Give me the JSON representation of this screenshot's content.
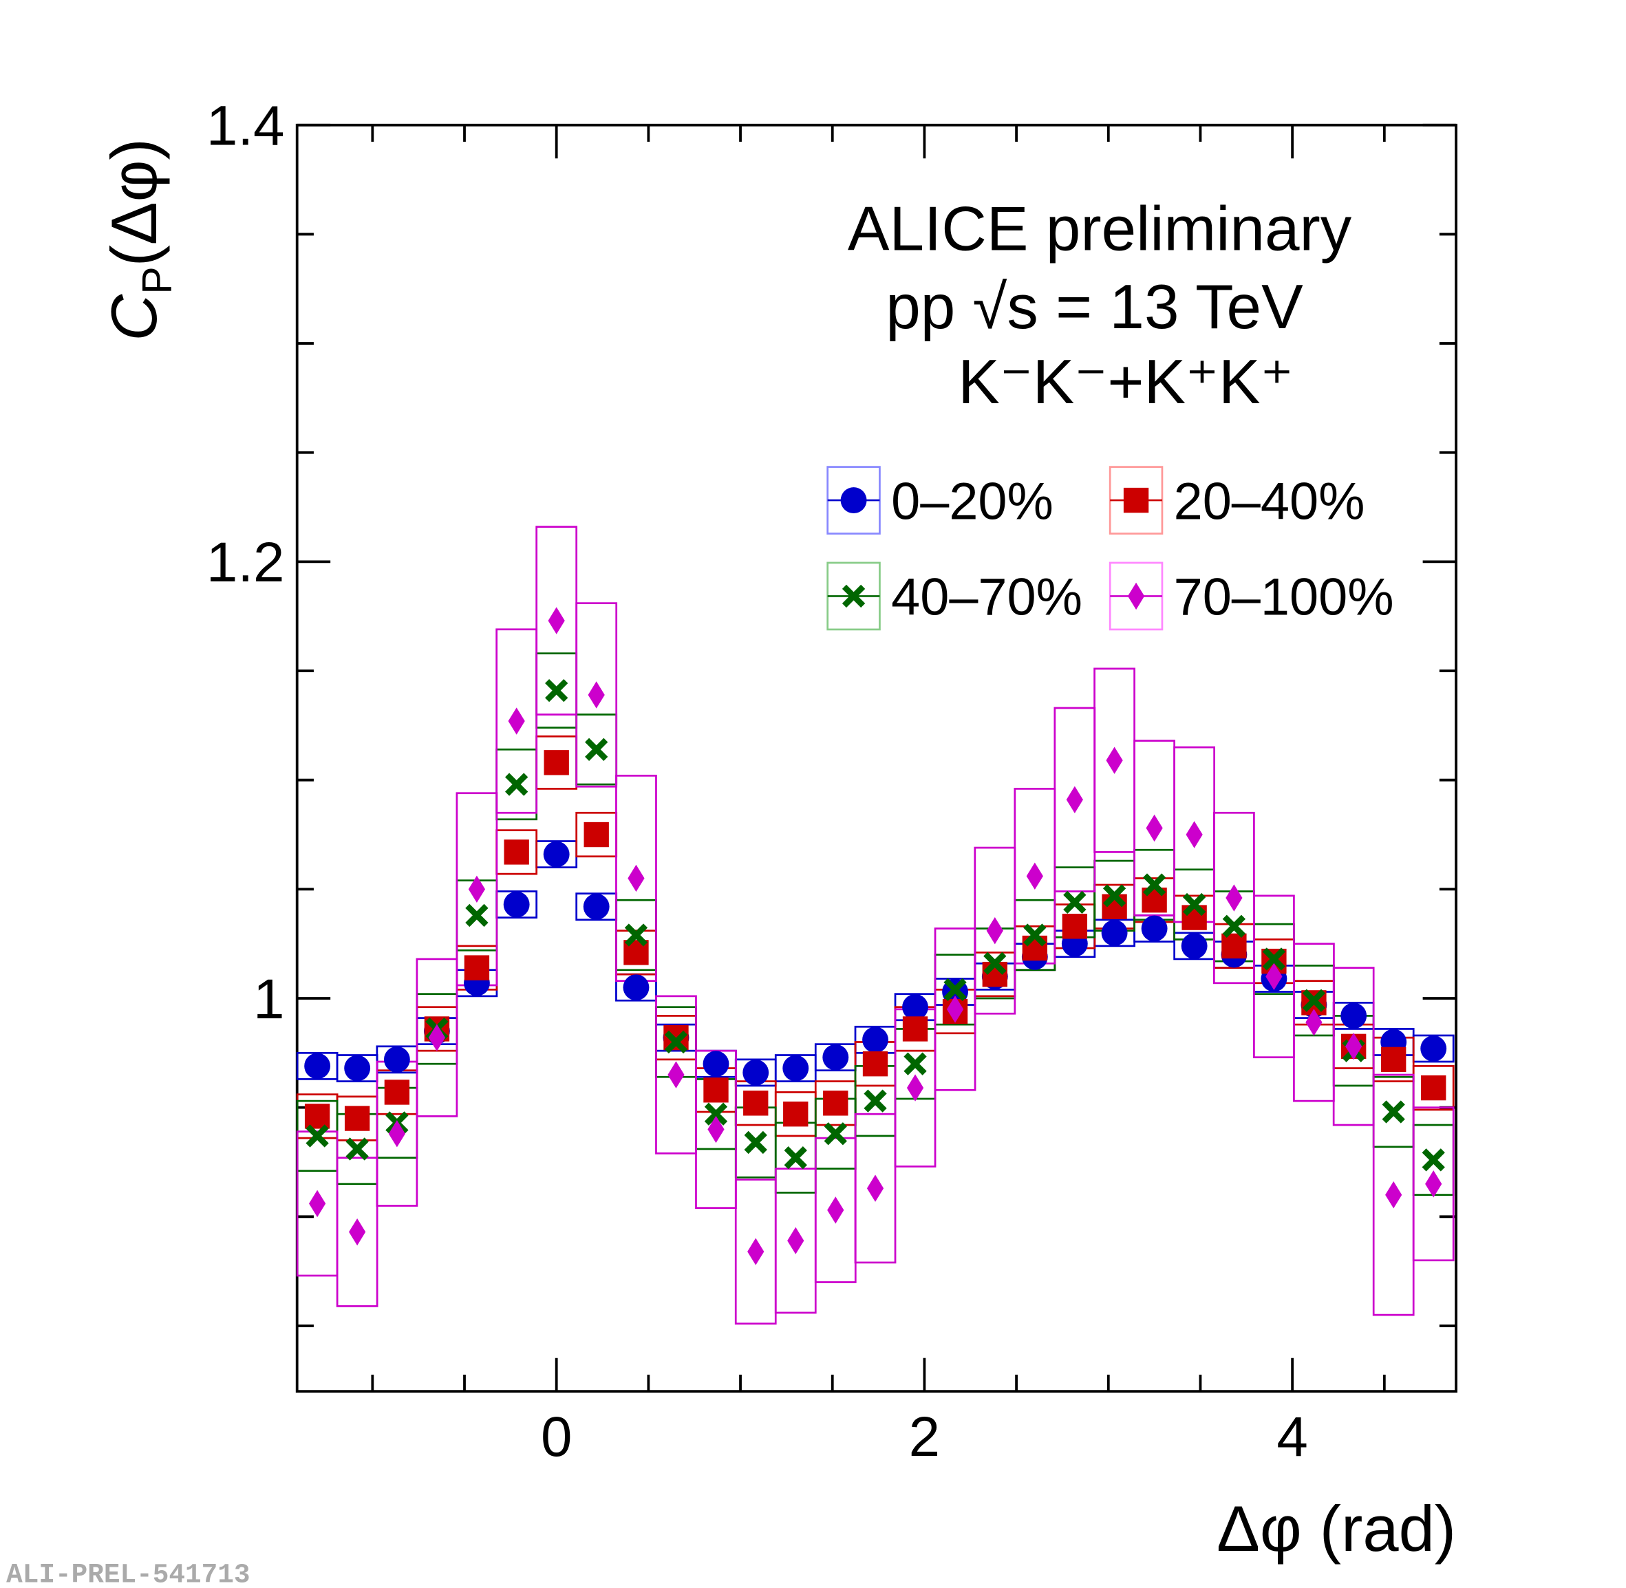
{
  "chart_data": {
    "type": "scatter",
    "title_lines": [
      "ALICE preliminary",
      "pp √s = 13 TeV",
      "K⁻K⁻+K⁺K⁺"
    ],
    "y_label": [
      "C",
      "P",
      "(Δφ)"
    ],
    "x_label": "Δφ (rad)",
    "watermark": "ALI-PREL-541713",
    "xlim": [
      -1.41,
      4.89
    ],
    "ylim": [
      0.82,
      1.4
    ],
    "xticks": [
      0,
      2,
      4
    ],
    "xminorticks": [
      -1,
      -0.5,
      0.5,
      1,
      1.5,
      2.5,
      3,
      3.5,
      4.5
    ],
    "yticks": [
      1,
      {
        "value": 1.2,
        "label": "1.2"
      },
      {
        "value": 1.4,
        "label": "1.4"
      }
    ],
    "yminorticks": [
      0.85,
      0.9,
      0.95,
      1.05,
      1.1,
      1.15,
      1.25,
      1.3,
      1.35
    ],
    "x": [
      -1.3,
      -1.083,
      -0.867,
      -0.65,
      -0.433,
      -0.217,
      0,
      0.217,
      0.433,
      0.65,
      0.867,
      1.083,
      1.3,
      1.517,
      1.733,
      1.95,
      2.167,
      2.383,
      2.6,
      2.817,
      3.033,
      3.25,
      3.467,
      3.683,
      3.9,
      4.117,
      4.333,
      4.55,
      4.767
    ],
    "series": [
      {
        "name": "0–20%",
        "color": "#0000cc",
        "marker": "circle",
        "values": [
          0.969,
          0.968,
          0.972,
          0.985,
          1.007,
          1.043,
          1.066,
          1.042,
          1.005,
          0.982,
          0.97,
          0.966,
          0.968,
          0.973,
          0.981,
          0.996,
          1.003,
          1.01,
          1.019,
          1.025,
          1.03,
          1.032,
          1.024,
          1.02,
          1.009,
          0.997,
          0.992,
          0.98,
          0.977
        ],
        "errors": [
          0.006,
          0.006,
          0.006,
          0.006,
          0.006,
          0.006,
          0.006,
          0.006,
          0.006,
          0.006,
          0.006,
          0.006,
          0.006,
          0.006,
          0.006,
          0.006,
          0.006,
          0.006,
          0.006,
          0.006,
          0.006,
          0.006,
          0.006,
          0.006,
          0.006,
          0.006,
          0.006,
          0.006,
          0.006
        ]
      },
      {
        "name": "20–40%",
        "color": "#cc0000",
        "marker": "square",
        "values": [
          0.946,
          0.945,
          0.957,
          0.986,
          1.014,
          1.067,
          1.108,
          1.075,
          1.021,
          0.982,
          0.958,
          0.952,
          0.947,
          0.952,
          0.97,
          0.986,
          0.994,
          1.011,
          1.023,
          1.033,
          1.042,
          1.045,
          1.037,
          1.024,
          1.017,
          0.998,
          0.978,
          0.972,
          0.959
        ],
        "errors": [
          0.01,
          0.01,
          0.01,
          0.01,
          0.01,
          0.01,
          0.012,
          0.01,
          0.01,
          0.01,
          0.01,
          0.01,
          0.01,
          0.01,
          0.01,
          0.01,
          0.01,
          0.01,
          0.01,
          0.01,
          0.01,
          0.01,
          0.01,
          0.01,
          0.01,
          0.01,
          0.01,
          0.01,
          0.01
        ]
      },
      {
        "name": "40–70%",
        "color": "#006600",
        "marker": "cross",
        "values": [
          0.937,
          0.931,
          0.943,
          0.986,
          1.038,
          1.098,
          1.141,
          1.114,
          1.029,
          0.98,
          0.947,
          0.934,
          0.927,
          0.938,
          0.953,
          0.97,
          1.004,
          1.016,
          1.029,
          1.044,
          1.047,
          1.052,
          1.043,
          1.033,
          1.018,
          0.999,
          0.976,
          0.948,
          0.926
        ],
        "errors": [
          0.016,
          0.016,
          0.016,
          0.016,
          0.016,
          0.016,
          0.017,
          0.016,
          0.016,
          0.016,
          0.016,
          0.016,
          0.016,
          0.016,
          0.016,
          0.016,
          0.016,
          0.016,
          0.016,
          0.016,
          0.016,
          0.016,
          0.016,
          0.016,
          0.016,
          0.016,
          0.016,
          0.016,
          0.016
        ]
      },
      {
        "name": "70–100%",
        "color": "#cc00cc",
        "marker": "diamond",
        "values": [
          0.906,
          0.893,
          0.938,
          0.982,
          1.05,
          1.127,
          1.173,
          1.139,
          1.055,
          0.965,
          0.94,
          0.884,
          0.889,
          0.903,
          0.913,
          0.959,
          0.995,
          1.031,
          1.056,
          1.091,
          1.109,
          1.078,
          1.075,
          1.046,
          1.01,
          0.989,
          0.978,
          0.91,
          0.915
        ],
        "errors": [
          0.033,
          0.034,
          0.033,
          0.036,
          0.044,
          0.042,
          0.043,
          0.042,
          0.047,
          0.036,
          0.036,
          0.033,
          0.033,
          0.033,
          0.034,
          0.036,
          0.037,
          0.038,
          0.04,
          0.042,
          0.042,
          0.04,
          0.04,
          0.039,
          0.037,
          0.036,
          0.036,
          0.055,
          0.035
        ]
      }
    ]
  }
}
